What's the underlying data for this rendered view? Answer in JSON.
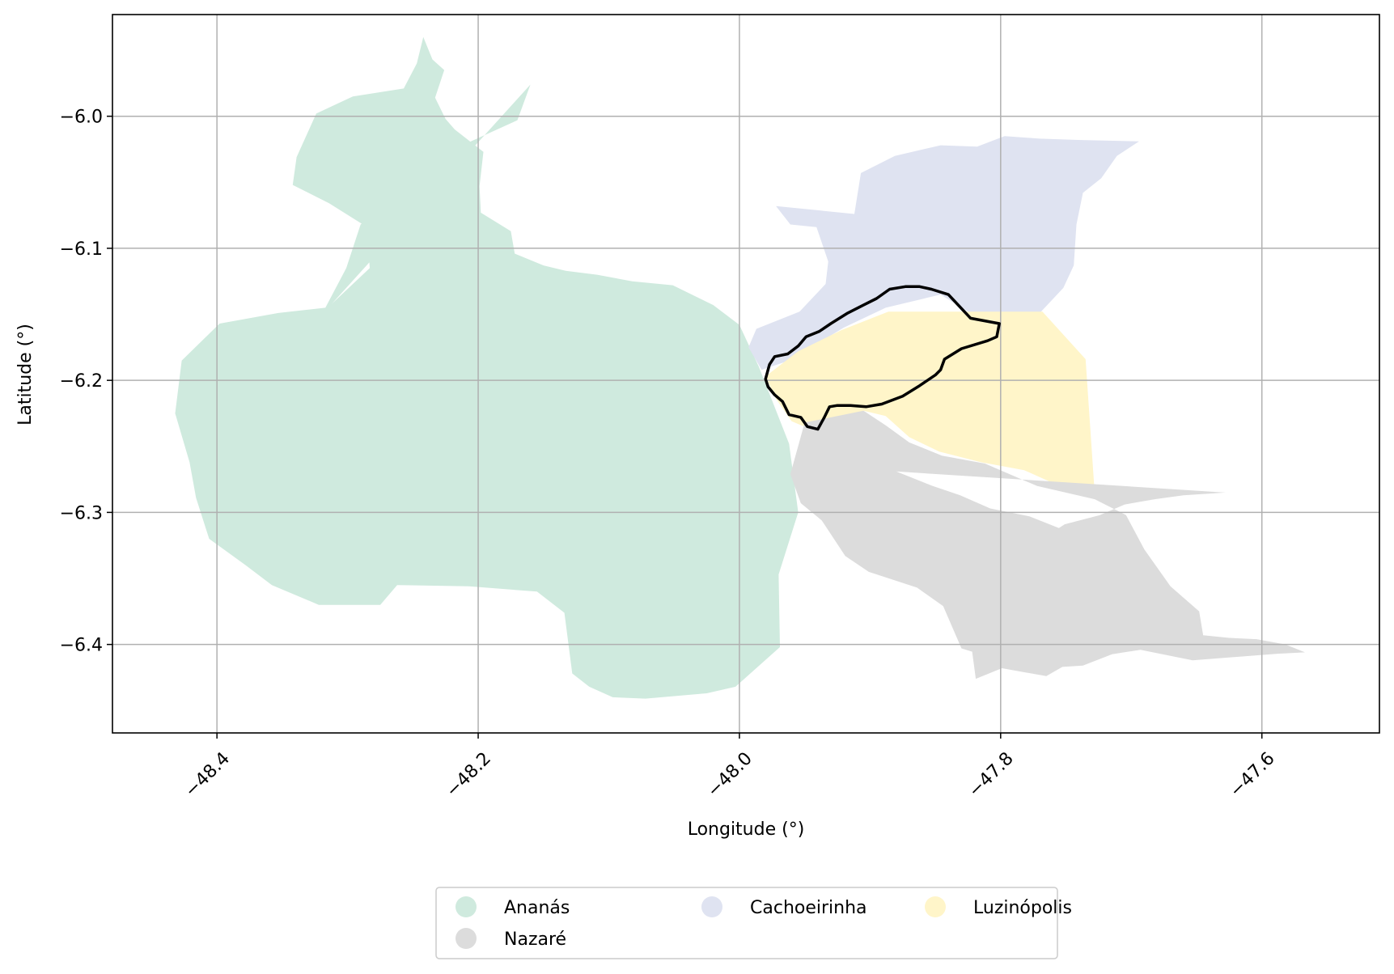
{
  "chart_data": {
    "type": "map",
    "xlabel": "Longitude (°)",
    "ylabel": "Latitude (°)",
    "xlim": [
      -48.48,
      -47.51
    ],
    "ylim": [
      -6.467,
      -5.923
    ],
    "grid": true,
    "x_ticks": [
      {
        "value": -48.4,
        "label": "−48.4"
      },
      {
        "value": -48.2,
        "label": "−48.2"
      },
      {
        "value": -48.0,
        "label": "−48.0"
      },
      {
        "value": -47.8,
        "label": "−47.8"
      },
      {
        "value": -47.6,
        "label": "−47.6"
      }
    ],
    "y_ticks": [
      {
        "value": -6.0,
        "label": "−6.0"
      },
      {
        "value": -6.1,
        "label": "−6.1"
      },
      {
        "value": -6.2,
        "label": "−6.2"
      },
      {
        "value": -6.3,
        "label": "−6.3"
      },
      {
        "value": -6.4,
        "label": "−6.4"
      }
    ],
    "legend": {
      "placement": "bottom-center",
      "columns": 3,
      "entries": [
        {
          "label": "Ananás",
          "color": "#cfeade"
        },
        {
          "label": "Cachoeirinha",
          "color": "#dfe3f1"
        },
        {
          "label": "Luzinópolis",
          "color": "#fff5c9"
        },
        {
          "label": "Nazaré",
          "color": "#dcdcdc"
        }
      ]
    },
    "regions": [
      {
        "name": "Ananás",
        "color": "#cfeade",
        "boundary": [
          [
            -48.16,
            -5.976
          ],
          [
            -48.17,
            -6.003
          ],
          [
            -48.21,
            -6.021
          ],
          [
            -48.25,
            -6.05
          ],
          [
            -48.29,
            -6.082
          ],
          [
            -48.301,
            -6.115
          ],
          [
            -48.317,
            -6.145
          ],
          [
            -48.353,
            -6.149
          ],
          [
            -48.398,
            -6.157
          ],
          [
            -48.427,
            -6.185
          ],
          [
            -48.432,
            -6.225
          ],
          [
            -48.421,
            -6.262
          ],
          [
            -48.416,
            -6.289
          ],
          [
            -48.406,
            -6.32
          ],
          [
            -48.378,
            -6.34
          ],
          [
            -48.358,
            -6.355
          ],
          [
            -48.322,
            -6.37
          ],
          [
            -48.275,
            -6.37
          ],
          [
            -48.262,
            -6.355
          ],
          [
            -48.207,
            -6.356
          ],
          [
            -48.155,
            -6.36
          ],
          [
            -48.134,
            -6.376
          ],
          [
            -48.128,
            -6.422
          ],
          [
            -48.115,
            -6.432
          ],
          [
            -48.097,
            -6.44
          ],
          [
            -48.072,
            -6.441
          ],
          [
            -48.025,
            -6.437
          ],
          [
            -48.003,
            -6.432
          ],
          [
            -47.969,
            -6.402
          ],
          [
            -47.97,
            -6.347
          ],
          [
            -47.955,
            -6.3
          ],
          [
            -47.962,
            -6.248
          ],
          [
            -47.985,
            -6.19
          ],
          [
            -48.0,
            -6.158
          ],
          [
            -48.02,
            -6.143
          ],
          [
            -48.051,
            -6.128
          ],
          [
            -48.082,
            -6.125
          ],
          [
            -48.109,
            -6.12
          ],
          [
            -48.133,
            -6.117
          ],
          [
            -48.15,
            -6.113
          ],
          [
            -48.172,
            -6.104
          ],
          [
            -48.175,
            -6.087
          ],
          [
            -48.198,
            -6.073
          ],
          [
            -48.199,
            -6.053
          ],
          [
            -48.196,
            -6.027
          ],
          [
            -48.218,
            -6.01
          ],
          [
            -48.225,
            -6.002
          ],
          [
            -48.233,
            -5.986
          ],
          [
            -48.226,
            -5.965
          ],
          [
            -48.235,
            -5.957
          ],
          [
            -48.242,
            -5.94
          ],
          [
            -48.247,
            -5.96
          ],
          [
            -48.257,
            -5.979
          ],
          [
            -48.296,
            -5.985
          ],
          [
            -48.324,
            -5.998
          ],
          [
            -48.339,
            -6.031
          ],
          [
            -48.342,
            -6.052
          ],
          [
            -48.314,
            -6.066
          ],
          [
            -48.285,
            -6.084
          ],
          [
            -48.283,
            -6.115
          ],
          [
            -48.312,
            -6.142
          ]
        ]
      },
      {
        "name": "Cachoeirinha",
        "color": "#dfe3f1",
        "boundary": [
          [
            -47.972,
            -6.068
          ],
          [
            -47.912,
            -6.074
          ],
          [
            -47.907,
            -6.043
          ],
          [
            -47.881,
            -6.03
          ],
          [
            -47.846,
            -6.022
          ],
          [
            -47.818,
            -6.023
          ],
          [
            -47.797,
            -6.015
          ],
          [
            -47.77,
            -6.017
          ],
          [
            -47.738,
            -6.018
          ],
          [
            -47.694,
            -6.019
          ],
          [
            -47.711,
            -6.03
          ],
          [
            -47.723,
            -6.047
          ],
          [
            -47.737,
            -6.058
          ],
          [
            -47.742,
            -6.082
          ],
          [
            -47.744,
            -6.113
          ],
          [
            -47.752,
            -6.13
          ],
          [
            -47.77,
            -6.149
          ],
          [
            -47.817,
            -6.153
          ],
          [
            -47.846,
            -6.135
          ],
          [
            -47.888,
            -6.145
          ],
          [
            -47.92,
            -6.16
          ],
          [
            -47.962,
            -6.185
          ],
          [
            -47.983,
            -6.192
          ],
          [
            -47.993,
            -6.175
          ],
          [
            -47.987,
            -6.161
          ],
          [
            -47.954,
            -6.148
          ],
          [
            -47.934,
            -6.127
          ],
          [
            -47.932,
            -6.11
          ],
          [
            -47.941,
            -6.084
          ],
          [
            -47.961,
            -6.082
          ]
        ]
      },
      {
        "name": "Luzinópolis",
        "color": "#fff5c9",
        "boundary": [
          [
            -47.886,
            -6.148
          ],
          [
            -47.768,
            -6.148
          ],
          [
            -47.735,
            -6.184
          ],
          [
            -47.728,
            -6.286
          ],
          [
            -47.755,
            -6.28
          ],
          [
            -47.782,
            -6.268
          ],
          [
            -47.815,
            -6.262
          ],
          [
            -47.847,
            -6.254
          ],
          [
            -47.87,
            -6.243
          ],
          [
            -47.888,
            -6.227
          ],
          [
            -47.905,
            -6.223
          ],
          [
            -47.943,
            -6.238
          ],
          [
            -47.96,
            -6.231
          ],
          [
            -47.972,
            -6.214
          ],
          [
            -47.98,
            -6.197
          ],
          [
            -47.955,
            -6.178
          ],
          [
            -47.922,
            -6.162
          ]
        ]
      },
      {
        "name": "Nazaré",
        "color": "#dcdcdc",
        "boundary": [
          [
            -47.95,
            -6.232
          ],
          [
            -47.905,
            -6.223
          ],
          [
            -47.888,
            -6.234
          ],
          [
            -47.87,
            -6.247
          ],
          [
            -47.845,
            -6.257
          ],
          [
            -47.812,
            -6.263
          ],
          [
            -47.772,
            -6.28
          ],
          [
            -47.728,
            -6.29
          ],
          [
            -47.704,
            -6.302
          ],
          [
            -47.69,
            -6.328
          ],
          [
            -47.67,
            -6.356
          ],
          [
            -47.648,
            -6.375
          ],
          [
            -47.645,
            -6.393
          ],
          [
            -47.625,
            -6.395
          ],
          [
            -47.604,
            -6.396
          ],
          [
            -47.582,
            -6.4
          ],
          [
            -47.567,
            -6.406
          ],
          [
            -47.588,
            -6.407
          ],
          [
            -47.653,
            -6.412
          ],
          [
            -47.693,
            -6.404
          ],
          [
            -47.744,
            -6.412
          ],
          [
            -47.765,
            -6.424
          ],
          [
            -47.799,
            -6.418
          ],
          [
            -47.819,
            -6.426
          ],
          [
            -47.822,
            -6.404
          ],
          [
            -47.815,
            -6.372
          ],
          [
            -47.806,
            -6.348
          ],
          [
            -47.787,
            -6.33
          ],
          [
            -47.771,
            -6.322
          ],
          [
            -47.751,
            -6.309
          ],
          [
            -47.724,
            -6.302
          ],
          [
            -47.705,
            -6.294
          ],
          [
            -47.682,
            -6.29
          ],
          [
            -47.66,
            -6.287
          ],
          [
            -47.628,
            -6.285
          ],
          [
            -47.88,
            -6.269
          ],
          [
            -47.852,
            -6.28
          ],
          [
            -47.831,
            -6.287
          ],
          [
            -47.808,
            -6.297
          ],
          [
            -47.778,
            -6.303
          ],
          [
            -47.755,
            -6.312
          ],
          [
            -47.732,
            -6.325
          ],
          [
            -47.712,
            -6.343
          ],
          [
            -47.7,
            -6.365
          ],
          [
            -47.697,
            -6.385
          ],
          [
            -47.706,
            -6.404
          ],
          [
            -47.737,
            -6.416
          ],
          [
            -47.769,
            -6.418
          ],
          [
            -47.807,
            -6.41
          ],
          [
            -47.83,
            -6.403
          ],
          [
            -47.844,
            -6.371
          ],
          [
            -47.864,
            -6.357
          ],
          [
            -47.901,
            -6.345
          ],
          [
            -47.919,
            -6.333
          ],
          [
            -47.937,
            -6.306
          ],
          [
            -47.953,
            -6.293
          ],
          [
            -47.961,
            -6.271
          ]
        ]
      }
    ],
    "outline": {
      "color": "#000000",
      "boundary": [
        [
          -47.801,
          -6.157
        ],
        [
          -47.803,
          -6.167
        ],
        [
          -47.81,
          -6.17
        ],
        [
          -47.83,
          -6.176
        ],
        [
          -47.843,
          -6.184
        ],
        [
          -47.846,
          -6.192
        ],
        [
          -47.85,
          -6.196
        ],
        [
          -47.862,
          -6.204
        ],
        [
          -47.875,
          -6.212
        ],
        [
          -47.891,
          -6.218
        ],
        [
          -47.903,
          -6.22
        ],
        [
          -47.915,
          -6.219
        ],
        [
          -47.925,
          -6.219
        ],
        [
          -47.931,
          -6.22
        ],
        [
          -47.935,
          -6.228
        ],
        [
          -47.94,
          -6.237
        ],
        [
          -47.948,
          -6.235
        ],
        [
          -47.953,
          -6.228
        ],
        [
          -47.962,
          -6.226
        ],
        [
          -47.967,
          -6.216
        ],
        [
          -47.973,
          -6.211
        ],
        [
          -47.978,
          -6.205
        ],
        [
          -47.98,
          -6.199
        ],
        [
          -47.977,
          -6.188
        ],
        [
          -47.973,
          -6.182
        ],
        [
          -47.963,
          -6.18
        ],
        [
          -47.955,
          -6.174
        ],
        [
          -47.949,
          -6.167
        ],
        [
          -47.939,
          -6.163
        ],
        [
          -47.93,
          -6.157
        ],
        [
          -47.917,
          -6.149
        ],
        [
          -47.905,
          -6.143
        ],
        [
          -47.895,
          -6.138
        ],
        [
          -47.885,
          -6.131
        ],
        [
          -47.873,
          -6.129
        ],
        [
          -47.862,
          -6.129
        ],
        [
          -47.853,
          -6.131
        ],
        [
          -47.84,
          -6.135
        ],
        [
          -47.823,
          -6.153
        ]
      ]
    }
  }
}
